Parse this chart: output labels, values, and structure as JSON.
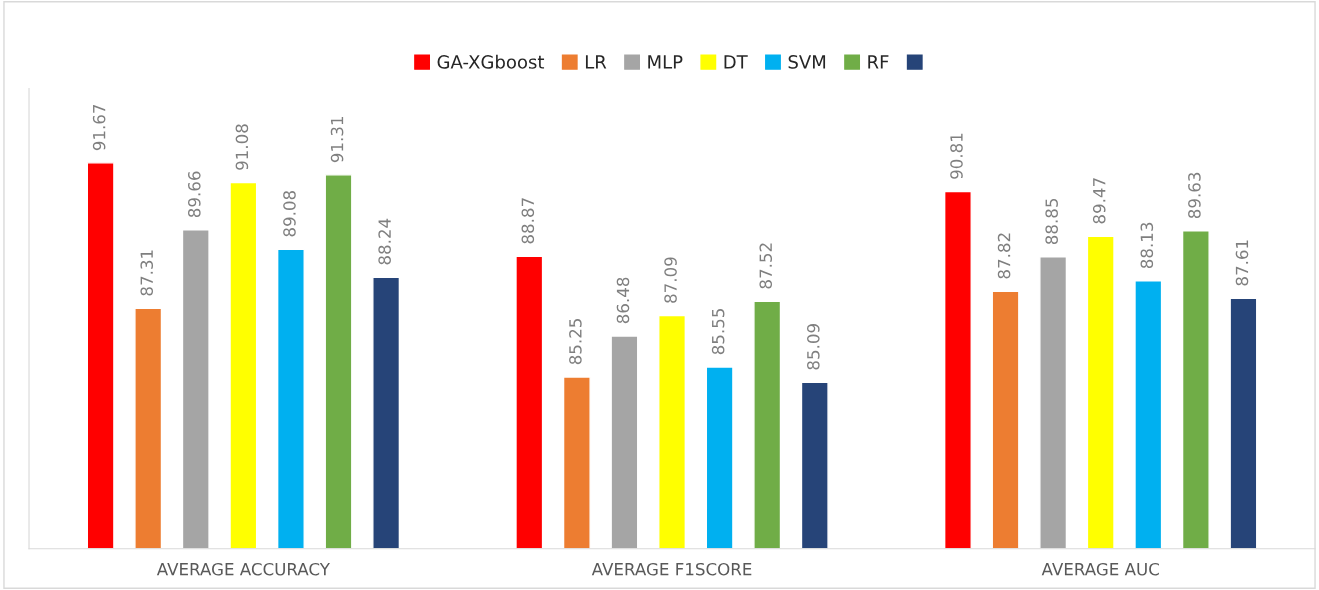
{
  "chart_data": {
    "type": "bar",
    "categories": [
      "AVERAGE ACCURACY",
      "AVERAGE F1SCORE",
      "AVERAGE AUC"
    ],
    "series": [
      {
        "name": "GA-XGboost",
        "color": "#ff0000",
        "values": [
          91.67,
          88.87,
          90.81
        ]
      },
      {
        "name": "LR",
        "color": "#ed7d31",
        "values": [
          87.31,
          85.25,
          87.82
        ]
      },
      {
        "name": "MLP",
        "color": "#a5a5a5",
        "values": [
          89.66,
          86.48,
          88.85
        ]
      },
      {
        "name": "DT",
        "color": "#ffff00",
        "values": [
          91.08,
          87.09,
          89.47
        ]
      },
      {
        "name": "SVM",
        "color": "#00b0f0",
        "values": [
          89.08,
          85.55,
          88.13
        ]
      },
      {
        "name": "RF",
        "color": "#70ad47",
        "values": [
          91.31,
          87.52,
          89.63
        ]
      },
      {
        "color": "#264478",
        "values": [
          88.24,
          85.09,
          87.61
        ]
      }
    ],
    "ylim": [
      80.1,
      93.9
    ],
    "tick_labels": "x",
    "data_labels": true,
    "legend": "top",
    "grid": false
  }
}
